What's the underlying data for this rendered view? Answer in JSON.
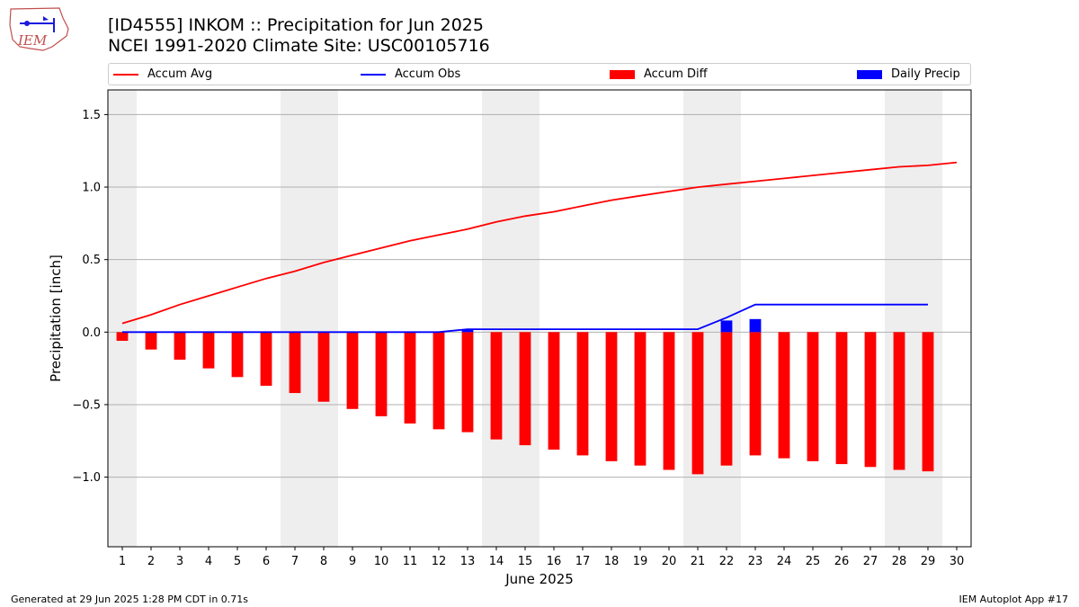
{
  "header": {
    "title": "[ID4555] INKOM :: Precipitation for Jun 2025",
    "subtitle": "NCEI 1991-2020 Climate Site: USC00105716",
    "logo_text": "IEM"
  },
  "legend": {
    "accum_avg": "Accum Avg",
    "accum_obs": "Accum Obs",
    "accum_diff": "Accum Diff",
    "daily_precip": "Daily Precip"
  },
  "footer": {
    "generated": "Generated at 29 Jun 2025 1:28 PM CDT in 0.71s",
    "app": "IEM Autoplot App #17"
  },
  "colors": {
    "avg": "#ff0000",
    "obs": "#0000ff",
    "diff": "#ff0000",
    "daily": "#0000ff",
    "weekend_band": "#eeeeee",
    "grid": "#b0b0b0"
  },
  "chart_data": {
    "type": "bar",
    "xlabel": "June 2025",
    "ylabel": "Precipitation [inch]",
    "xlim": [
      0.5,
      30.5
    ],
    "ylim": [
      -1.48,
      1.67
    ],
    "x_ticks": [
      1,
      2,
      3,
      4,
      5,
      6,
      7,
      8,
      9,
      10,
      11,
      12,
      13,
      14,
      15,
      16,
      17,
      18,
      19,
      20,
      21,
      22,
      23,
      24,
      25,
      26,
      27,
      28,
      29,
      30
    ],
    "y_ticks": [
      -1.0,
      -0.5,
      0.0,
      0.5,
      1.0,
      1.5
    ],
    "y_tick_labels": [
      "−1.0",
      "−0.5",
      "0.0",
      "0.5",
      "1.0",
      "1.5"
    ],
    "grid": "horizontal",
    "legend_position": "top",
    "weekend_bands": [
      [
        0.5,
        1.5
      ],
      [
        6.5,
        8.5
      ],
      [
        13.5,
        15.5
      ],
      [
        20.5,
        22.5
      ],
      [
        27.5,
        29.5
      ]
    ],
    "series": [
      {
        "name": "Accum Avg",
        "kind": "line",
        "days": [
          1,
          2,
          3,
          4,
          5,
          6,
          7,
          8,
          9,
          10,
          11,
          12,
          13,
          14,
          15,
          16,
          17,
          18,
          19,
          20,
          21,
          22,
          23,
          24,
          25,
          26,
          27,
          28,
          29,
          30
        ],
        "values": [
          0.06,
          0.12,
          0.19,
          0.25,
          0.31,
          0.37,
          0.42,
          0.48,
          0.53,
          0.58,
          0.63,
          0.67,
          0.71,
          0.76,
          0.8,
          0.83,
          0.87,
          0.91,
          0.94,
          0.97,
          1.0,
          1.02,
          1.04,
          1.06,
          1.08,
          1.1,
          1.12,
          1.14,
          1.15,
          1.17
        ]
      },
      {
        "name": "Accum Obs",
        "kind": "line",
        "days": [
          1,
          2,
          3,
          4,
          5,
          6,
          7,
          8,
          9,
          10,
          11,
          12,
          13,
          14,
          15,
          16,
          17,
          18,
          19,
          20,
          21,
          22,
          23,
          24,
          25,
          26,
          27,
          28,
          29
        ],
        "values": [
          0,
          0,
          0,
          0,
          0,
          0,
          0,
          0,
          0,
          0,
          0,
          0,
          0.02,
          0.02,
          0.02,
          0.02,
          0.02,
          0.02,
          0.02,
          0.02,
          0.02,
          0.1,
          0.19,
          0.19,
          0.19,
          0.19,
          0.19,
          0.19,
          0.19
        ]
      },
      {
        "name": "Accum Diff",
        "kind": "bar",
        "days": [
          1,
          2,
          3,
          4,
          5,
          6,
          7,
          8,
          9,
          10,
          11,
          12,
          13,
          14,
          15,
          16,
          17,
          18,
          19,
          20,
          21,
          22,
          23,
          24,
          25,
          26,
          27,
          28,
          29
        ],
        "values": [
          -0.06,
          -0.12,
          -0.19,
          -0.25,
          -0.31,
          -0.37,
          -0.42,
          -0.48,
          -0.53,
          -0.58,
          -0.63,
          -0.67,
          -0.69,
          -0.74,
          -0.78,
          -0.81,
          -0.85,
          -0.89,
          -0.92,
          -0.95,
          -0.98,
          -0.92,
          -0.85,
          -0.87,
          -0.89,
          -0.91,
          -0.93,
          -0.95,
          -0.96
        ]
      },
      {
        "name": "Daily Precip",
        "kind": "bar",
        "days": [
          13,
          22,
          23
        ],
        "values": [
          0.02,
          0.08,
          0.09
        ]
      }
    ]
  }
}
